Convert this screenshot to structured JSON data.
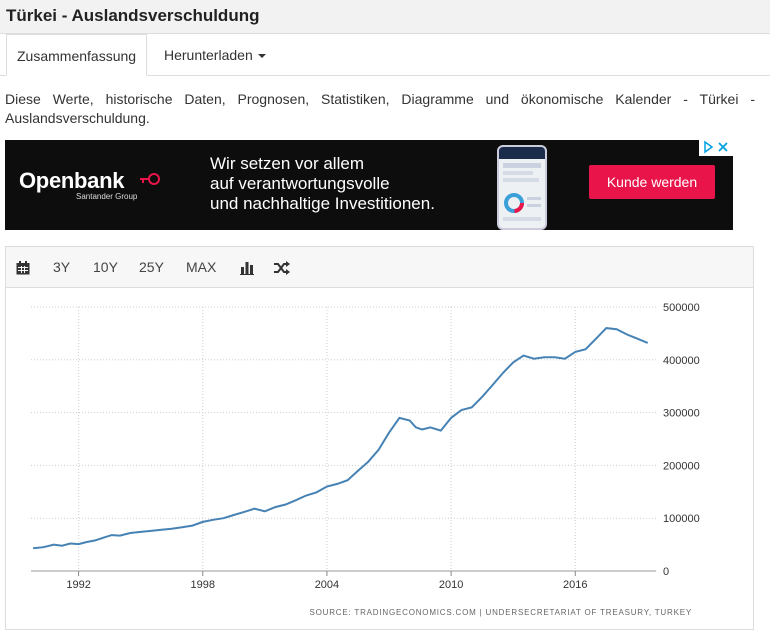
{
  "page_title": "Türkei - Auslandsverschuldung",
  "tabs": [
    {
      "label": "Zusammenfassung",
      "active": true
    },
    {
      "label": "Herunterladen",
      "active": false
    }
  ],
  "description": "Diese Werte, historische Daten, Prognosen, Statistiken, Diagramme und ökonomische Kalender - Türkei - Auslandsverschuldung.",
  "ad": {
    "brand": "Openbank",
    "brand_sub": "Santander Group",
    "message_lines": [
      "Wir setzen vor allem",
      "auf verantwortungsvolle",
      "und nachhaltige Investitionen."
    ],
    "cta": "Kunde werden",
    "background": "#0d0d0d",
    "accent": "#e9154a"
  },
  "toolbar": {
    "calendar_icon": "calendar-icon",
    "ranges": [
      "3Y",
      "10Y",
      "25Y",
      "MAX"
    ],
    "bar_chart_icon": "bar-chart-icon",
    "compare_icon": "shuffle-icon"
  },
  "source_text": "SOURCE: TRADINGECONOMICS.COM | UNDERSECRETARIAT OF TREASURY, TURKEY",
  "chart_data": {
    "type": "line",
    "title": "",
    "xlabel": "",
    "ylabel": "",
    "line_color": "#4682b4",
    "grid": true,
    "x_ticks": [
      "1992",
      "1998",
      "2004",
      "2010",
      "2016"
    ],
    "y_ticks": [
      "0",
      "100000",
      "200000",
      "300000",
      "400000",
      "500000"
    ],
    "xlim": [
      1989.7,
      2019.9
    ],
    "ylim": [
      0,
      500000
    ],
    "series": [
      {
        "x": [
          1989.8,
          1990.3,
          1990.8,
          1991.2,
          1991.6,
          1992.0,
          1992.4,
          1992.8,
          1993.2,
          1993.6,
          1994.0,
          1994.5,
          1995.0,
          1995.5,
          1996.0,
          1996.5,
          1997.0,
          1997.5,
          1998.0,
          1998.5,
          1999.0,
          1999.5,
          2000.0,
          2000.5,
          2001.0,
          2001.5,
          2002.0,
          2002.5,
          2003.0,
          2003.5,
          2004.0,
          2004.5,
          2005.0,
          2005.5,
          2006.0,
          2006.5,
          2007.0,
          2007.5,
          2008.0,
          2008.3,
          2008.6,
          2009.0,
          2009.5,
          2010.0,
          2010.5,
          2011.0,
          2011.5,
          2012.0,
          2012.5,
          2013.0,
          2013.5,
          2014.0,
          2014.5,
          2015.0,
          2015.5,
          2016.0,
          2016.5,
          2017.0,
          2017.5,
          2018.0,
          2018.5,
          2019.0,
          2019.5
        ],
        "y": [
          43000,
          45000,
          50000,
          48000,
          52000,
          51000,
          55000,
          58000,
          63000,
          68000,
          67000,
          72000,
          74000,
          76000,
          78000,
          80000,
          83000,
          86000,
          93000,
          97000,
          100000,
          106000,
          112000,
          118000,
          113000,
          121000,
          126000,
          134000,
          143000,
          149000,
          160000,
          165000,
          172000,
          190000,
          207000,
          230000,
          262000,
          290000,
          285000,
          272000,
          268000,
          272000,
          266000,
          290000,
          305000,
          310000,
          330000,
          352000,
          375000,
          395000,
          408000,
          402000,
          405000,
          405000,
          402000,
          415000,
          420000,
          440000,
          460000,
          458000,
          448000,
          440000,
          432000
        ]
      }
    ]
  }
}
